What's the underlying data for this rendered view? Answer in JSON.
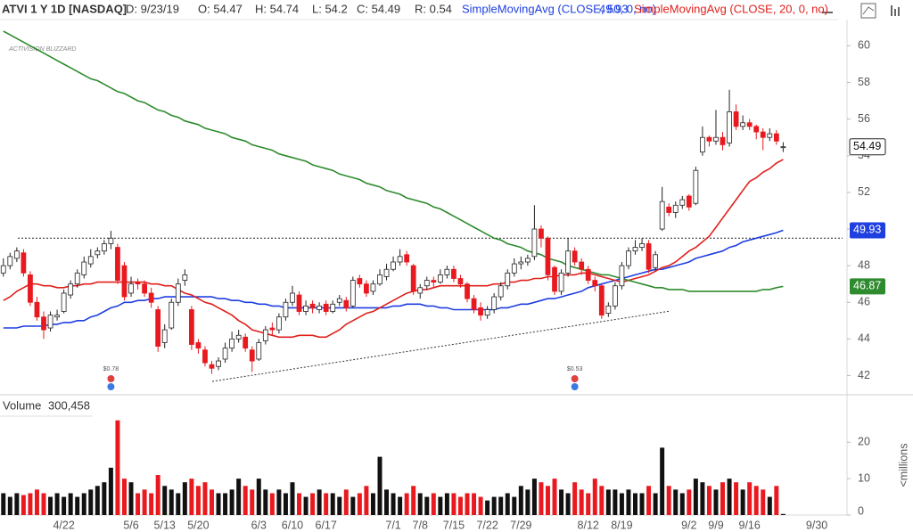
{
  "chart_data": {
    "type": "candlestick",
    "title": "ATVI 1 Y 1D [NASDAQ]",
    "header": [
      "D: 9/23/19",
      "O: 54.47",
      "H: 54.74",
      "L: 54.2",
      "C: 54.49",
      "R: 0.54"
    ],
    "watermark": "ACTIVISION BLIZZARD",
    "dividends": [
      "$0.78",
      "$0.53"
    ],
    "categories": [
      null,
      null,
      null,
      null,
      null,
      null,
      null,
      null,
      null,
      "4/22",
      null,
      null,
      null,
      null,
      null,
      null,
      null,
      null,
      null,
      "5/6",
      null,
      null,
      null,
      null,
      "5/13",
      null,
      null,
      null,
      null,
      "5/20",
      null,
      null,
      null,
      null,
      null,
      null,
      null,
      null,
      "6/3",
      null,
      null,
      null,
      null,
      "6/10",
      null,
      null,
      null,
      null,
      "6/17",
      null,
      null,
      null,
      null,
      null,
      null,
      null,
      null,
      null,
      "7/1",
      null,
      null,
      null,
      "7/8",
      null,
      null,
      null,
      null,
      "7/15",
      null,
      null,
      null,
      null,
      "7/22",
      null,
      null,
      null,
      null,
      "7/29",
      null,
      null,
      null,
      null,
      null,
      null,
      null,
      null,
      null,
      "8/12",
      null,
      null,
      null,
      null,
      "8/19",
      null,
      null,
      null,
      null,
      null,
      null,
      null,
      null,
      null,
      "9/2",
      null,
      null,
      null,
      "9/9",
      null,
      null,
      null,
      null,
      "9/16",
      null,
      null,
      null,
      null,
      null,
      null,
      null,
      null,
      null,
      "9/30",
      null,
      null,
      null,
      null
    ],
    "open": [
      47.6,
      48.0,
      48.4,
      48.7,
      47.5,
      46.0,
      45.2,
      44.6,
      45.2,
      45.5,
      46.4,
      47.0,
      47.5,
      48.1,
      48.6,
      48.8,
      49.2,
      49.0,
      48.0,
      46.5,
      47.1,
      47.0,
      46.5,
      45.6,
      43.8,
      44.6,
      46.0,
      47.2,
      45.6,
      43.8,
      43.4,
      42.6,
      42.5,
      42.9,
      43.5,
      44.0,
      44.1,
      43.4,
      42.9,
      43.9,
      44.6,
      44.5,
      45.2,
      46.0,
      46.4,
      45.5,
      45.9,
      45.6,
      45.9,
      45.5,
      46.0,
      46.1,
      45.8,
      47.3,
      47.0,
      46.6,
      47.0,
      47.4,
      47.8,
      48.2,
      48.6,
      48.0,
      46.5,
      46.9,
      47.2,
      47.1,
      47.5,
      47.8,
      47.3,
      47.0,
      46.2,
      45.7,
      45.3,
      45.6,
      46.3,
      46.9,
      47.6,
      48.1,
      48.2,
      48.5,
      50.0,
      49.5,
      47.9,
      46.6,
      47.6,
      48.8,
      48.2,
      47.8,
      47.2,
      46.9,
      45.4,
      45.8,
      46.9,
      48.0,
      48.8,
      49.0,
      49.2,
      47.9,
      50.0,
      51.2,
      50.9,
      51.3,
      51.8,
      51.4,
      54.2,
      55.0,
      54.8,
      55.0,
      54.7,
      56.4,
      55.6,
      55.8,
      55.6,
      55.3,
      55.0,
      55.2,
      54.47,
      null,
      null,
      null,
      null,
      null,
      null,
      null,
      null,
      null
    ],
    "high": [
      48.4,
      48.7,
      49.0,
      48.9,
      47.7,
      46.3,
      45.5,
      45.5,
      45.6,
      46.7,
      47.2,
      47.8,
      48.5,
      48.9,
      49.0,
      49.4,
      49.9,
      49.2,
      48.2,
      47.4,
      47.3,
      47.2,
      46.8,
      45.8,
      44.8,
      46.2,
      47.3,
      47.8,
      45.8,
      44.0,
      43.6,
      42.8,
      43.0,
      43.8,
      44.4,
      44.5,
      44.3,
      43.6,
      44.0,
      44.7,
      44.9,
      45.4,
      46.2,
      46.9,
      46.6,
      46.1,
      46.1,
      46.0,
      46.1,
      46.1,
      46.4,
      46.3,
      47.4,
      47.5,
      47.2,
      47.2,
      47.8,
      48.1,
      48.5,
      48.9,
      48.8,
      48.1,
      47.0,
      47.4,
      47.4,
      47.8,
      48.0,
      48.0,
      47.5,
      47.1,
      46.4,
      46.0,
      45.8,
      46.5,
      47.1,
      47.8,
      48.4,
      48.5,
      48.6,
      51.3,
      50.2,
      49.6,
      48.0,
      47.8,
      49.5,
      49.0,
      48.4,
      48.0,
      47.4,
      47.0,
      46.0,
      47.1,
      48.2,
      49.0,
      49.4,
      49.5,
      49.4,
      48.8,
      52.3,
      51.4,
      51.5,
      51.8,
      51.9,
      53.4,
      55.6,
      55.1,
      56.5,
      55.3,
      57.6,
      56.8,
      56.2,
      56.0,
      55.7,
      55.5,
      55.5,
      55.4,
      54.74,
      null,
      null,
      null,
      null,
      null,
      null,
      null,
      null,
      null
    ],
    "low": [
      47.4,
      47.8,
      48.2,
      47.4,
      45.8,
      45.0,
      44.0,
      44.4,
      45.0,
      45.4,
      46.2,
      46.8,
      47.3,
      47.9,
      48.4,
      48.6,
      48.9,
      47.0,
      46.1,
      46.3,
      46.7,
      46.3,
      45.7,
      43.3,
      43.5,
      44.5,
      45.8,
      46.9,
      43.4,
      43.2,
      42.5,
      42.1,
      42.3,
      42.7,
      43.3,
      43.8,
      43.3,
      42.2,
      42.8,
      43.7,
      44.2,
      44.3,
      45.0,
      45.8,
      45.3,
      45.3,
      45.4,
      45.4,
      45.3,
      45.4,
      45.8,
      45.5,
      45.7,
      46.8,
      46.3,
      46.4,
      46.9,
      47.2,
      47.7,
      48.0,
      48.0,
      46.4,
      46.2,
      46.7,
      46.8,
      47.0,
      47.3,
      47.1,
      46.8,
      46.0,
      45.4,
      45.0,
      45.1,
      45.4,
      46.1,
      46.7,
      47.4,
      47.8,
      48.0,
      48.3,
      49.0,
      47.2,
      46.4,
      46.4,
      47.4,
      48.0,
      47.5,
      47.0,
      46.6,
      45.1,
      45.2,
      45.6,
      46.7,
      47.8,
      48.6,
      48.8,
      47.6,
      47.7,
      49.9,
      50.7,
      50.6,
      51.1,
      51.0,
      51.3,
      54.0,
      54.5,
      54.6,
      54.3,
      54.5,
      55.4,
      55.4,
      55.4,
      54.9,
      54.3,
      54.8,
      54.6,
      54.2,
      null,
      null,
      null,
      null,
      null,
      null,
      null,
      null,
      null
    ],
    "close": [
      48.0,
      48.5,
      48.8,
      47.6,
      46.0,
      45.2,
      44.5,
      45.3,
      45.3,
      46.5,
      47.0,
      47.6,
      48.2,
      48.5,
      48.8,
      49.2,
      49.5,
      47.2,
      46.3,
      47.0,
      47.0,
      46.5,
      46.0,
      43.6,
      44.5,
      46.0,
      47.0,
      47.5,
      43.7,
      43.5,
      42.7,
      42.4,
      42.8,
      43.5,
      44.0,
      44.2,
      43.5,
      42.8,
      43.8,
      44.5,
      44.5,
      45.2,
      46.0,
      46.5,
      45.5,
      45.8,
      45.7,
      45.8,
      45.5,
      45.9,
      46.2,
      45.7,
      47.2,
      47.0,
      46.5,
      47.0,
      47.5,
      47.8,
      48.2,
      48.5,
      48.2,
      46.6,
      46.8,
      47.2,
      47.1,
      47.5,
      47.8,
      47.3,
      47.0,
      46.2,
      45.6,
      45.3,
      45.6,
      46.3,
      46.9,
      47.6,
      48.1,
      48.2,
      48.4,
      50.0,
      49.5,
      47.5,
      46.6,
      47.6,
      48.8,
      48.2,
      47.8,
      47.2,
      46.9,
      45.3,
      45.8,
      46.9,
      48.0,
      48.8,
      49.0,
      49.2,
      47.8,
      48.6,
      51.5,
      50.9,
      51.3,
      51.6,
      51.2,
      53.2,
      55.0,
      54.8,
      55.0,
      54.6,
      56.4,
      55.6,
      55.8,
      55.6,
      55.3,
      55.0,
      55.2,
      54.8,
      54.49,
      null,
      null,
      null,
      null,
      null,
      null,
      null,
      null,
      null
    ],
    "colors": {
      "up": "#ffffff",
      "down": "#e8191f",
      "outline": "#222222"
    },
    "series": [
      {
        "name": "SimpleMovingAvg (CLOSE, 50, 0, no)",
        "color": "#1f3fe0",
        "values": [
          44.6,
          44.6,
          44.6,
          44.7,
          44.7,
          44.7,
          44.7,
          44.8,
          44.8,
          44.9,
          44.9,
          45.0,
          45.0,
          45.2,
          45.3,
          45.5,
          45.7,
          45.8,
          46.0,
          46.0,
          46.1,
          46.1,
          46.2,
          46.2,
          46.3,
          46.3,
          46.3,
          46.3,
          46.3,
          46.3,
          46.3,
          46.3,
          46.2,
          46.2,
          46.1,
          46.1,
          46.0,
          46.0,
          45.9,
          45.9,
          45.8,
          45.8,
          45.7,
          45.7,
          45.7,
          45.7,
          45.7,
          45.7,
          45.7,
          45.7,
          45.7,
          45.7,
          45.7,
          45.7,
          45.7,
          45.7,
          45.7,
          45.7,
          45.8,
          45.8,
          45.9,
          45.9,
          45.9,
          45.8,
          45.8,
          45.7,
          45.7,
          45.6,
          45.6,
          45.6,
          45.6,
          45.6,
          45.6,
          45.6,
          45.7,
          45.7,
          45.8,
          45.9,
          45.9,
          46.0,
          46.1,
          46.2,
          46.2,
          46.3,
          46.4,
          46.5,
          46.6,
          46.8,
          46.9,
          47.0,
          47.1,
          47.2,
          47.3,
          47.4,
          47.5,
          47.6,
          47.7,
          47.8,
          47.8,
          47.9,
          48.0,
          48.1,
          48.2,
          48.4,
          48.5,
          48.6,
          48.7,
          48.8,
          49.0,
          49.1,
          49.3,
          49.4,
          49.5,
          49.6,
          49.7,
          49.8,
          49.93,
          null,
          null,
          null,
          null,
          null,
          null,
          null,
          null,
          null
        ]
      },
      {
        "name": "SimpleMovingAvg (CLOSE, 20, 0, no)",
        "color": "#e0201c",
        "values": [
          46.1,
          46.3,
          46.6,
          46.8,
          47.0,
          47.0,
          46.9,
          46.9,
          46.8,
          46.8,
          46.9,
          46.9,
          47.0,
          47.0,
          47.1,
          47.1,
          47.1,
          47.1,
          47.1,
          47.1,
          47.1,
          47.1,
          47.0,
          47.0,
          46.9,
          46.9,
          46.7,
          46.5,
          46.4,
          46.2,
          46.0,
          45.9,
          45.7,
          45.5,
          45.3,
          45.0,
          44.8,
          44.5,
          44.4,
          44.3,
          44.2,
          44.1,
          44.1,
          44.1,
          44.2,
          44.2,
          44.2,
          44.1,
          44.1,
          44.3,
          44.5,
          44.8,
          45.0,
          45.2,
          45.4,
          45.5,
          45.7,
          45.9,
          46.1,
          46.3,
          46.5,
          46.6,
          46.7,
          46.7,
          46.8,
          46.9,
          46.9,
          46.9,
          46.9,
          46.9,
          46.9,
          46.9,
          46.9,
          47.0,
          47.0,
          47.1,
          47.1,
          47.2,
          47.2,
          47.3,
          47.3,
          47.4,
          47.4,
          47.5,
          47.5,
          47.5,
          47.6,
          47.6,
          47.5,
          47.4,
          47.3,
          47.2,
          47.1,
          47.2,
          47.3,
          47.4,
          47.5,
          47.7,
          47.9,
          48.0,
          48.2,
          48.5,
          48.8,
          49.0,
          49.3,
          49.6,
          50.1,
          50.6,
          51.1,
          51.6,
          52.1,
          52.6,
          52.8,
          53.1,
          53.3,
          53.6,
          53.8,
          null,
          null,
          null,
          null,
          null,
          null,
          null,
          null,
          null
        ]
      },
      {
        "color": "#2e8b2e",
        "values": [
          60.8,
          60.6,
          60.4,
          60.2,
          60.0,
          59.8,
          59.6,
          59.4,
          59.2,
          59.0,
          58.8,
          58.6,
          58.4,
          58.2,
          58.1,
          57.9,
          57.7,
          57.5,
          57.4,
          57.2,
          57.0,
          56.9,
          56.7,
          56.5,
          56.4,
          56.2,
          56.1,
          55.9,
          55.8,
          55.7,
          55.5,
          55.4,
          55.3,
          55.2,
          55.0,
          54.9,
          54.8,
          54.6,
          54.5,
          54.4,
          54.3,
          54.1,
          54.0,
          53.9,
          53.8,
          53.7,
          53.5,
          53.4,
          53.3,
          53.2,
          53.0,
          52.9,
          52.8,
          52.7,
          52.5,
          52.4,
          52.3,
          52.1,
          52.0,
          51.9,
          51.7,
          51.6,
          51.5,
          51.4,
          51.2,
          51.1,
          50.9,
          50.7,
          50.5,
          50.3,
          50.1,
          49.9,
          49.7,
          49.5,
          49.4,
          49.2,
          49.1,
          49.0,
          48.8,
          48.7,
          48.6,
          48.4,
          48.3,
          48.2,
          48.0,
          47.9,
          47.8,
          47.7,
          47.6,
          47.5,
          47.5,
          47.4,
          47.3,
          47.2,
          47.1,
          47.0,
          46.9,
          46.8,
          46.8,
          46.7,
          46.7,
          46.7,
          46.6,
          46.6,
          46.6,
          46.6,
          46.6,
          46.6,
          46.6,
          46.6,
          46.6,
          46.6,
          46.6,
          46.7,
          46.7,
          46.8,
          46.87,
          null,
          null,
          null,
          null,
          null,
          null,
          null,
          null,
          null
        ]
      }
    ],
    "level": 49.5,
    "ylim": [
      41.1,
      62.5
    ],
    "yticks": [
      42,
      44,
      46,
      48,
      50,
      52,
      54,
      56,
      58,
      60
    ],
    "volume": {
      "type": "bar",
      "label": "Volume",
      "last_label": "300,458",
      "unit": "<millions",
      "colors": {
        "up": "#111111",
        "down": "#e8191f"
      },
      "values": [
        6,
        5,
        6,
        5.5,
        6,
        7,
        6,
        5,
        6,
        5,
        6,
        5,
        6,
        7,
        8,
        9,
        13,
        26,
        10,
        9,
        6,
        7,
        6,
        11,
        8,
        7,
        6,
        9,
        10,
        8,
        9,
        7,
        6,
        6,
        7,
        10,
        8,
        7,
        10,
        7,
        6,
        7,
        6,
        9,
        6,
        5,
        6,
        7,
        6,
        6,
        5,
        7,
        5,
        6,
        8,
        6,
        16,
        7,
        6,
        5,
        6,
        8,
        6,
        5,
        6,
        5,
        6,
        6,
        5,
        6,
        6,
        5,
        4,
        5,
        5,
        6,
        5,
        8,
        7,
        10,
        9,
        8,
        10,
        7,
        6,
        9,
        7,
        6,
        10,
        8,
        7,
        7,
        6,
        7,
        6,
        6,
        8,
        6,
        18.5,
        8,
        7,
        6,
        7,
        10,
        9,
        8,
        7,
        9,
        10,
        9,
        7,
        9,
        8,
        7,
        5,
        8,
        0.300458,
        null,
        null,
        null,
        null,
        null,
        null,
        null,
        null,
        null
      ],
      "ylim": [
        0,
        31.8
      ],
      "yticks": [
        0,
        10,
        20
      ]
    }
  }
}
